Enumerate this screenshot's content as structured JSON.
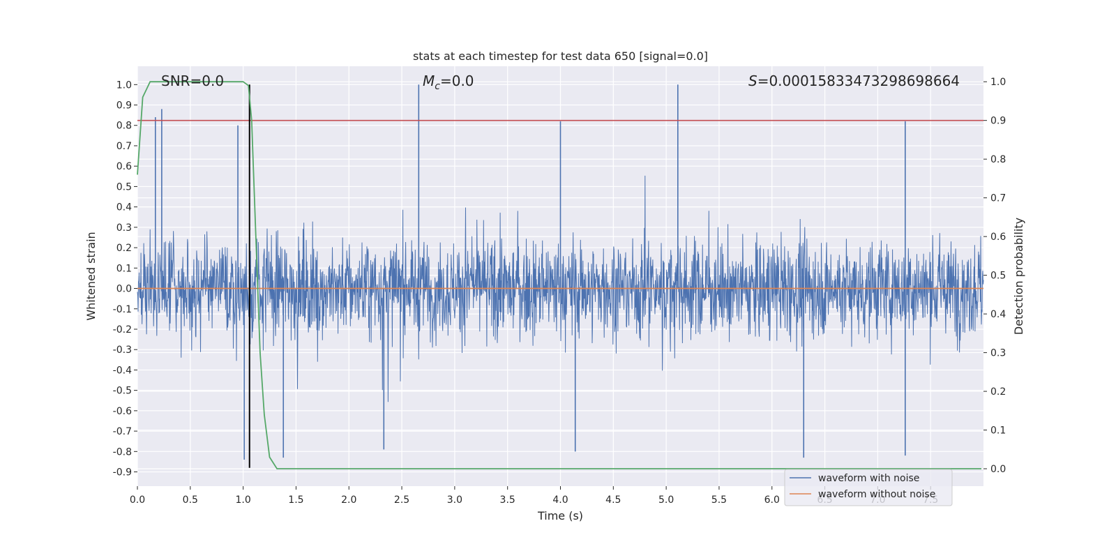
{
  "chart_data": {
    "type": "line",
    "title": "stats at each timestep for test data 650 [signal=0.0]",
    "xlabel": "Time (s)",
    "ylabel_left": "Whitened strain",
    "ylabel_right": "Detection probability",
    "xlim": [
      0.0,
      8.0
    ],
    "ylim_left": [
      -0.97,
      1.09
    ],
    "ylim_right": [
      -0.045,
      1.04
    ],
    "x_ticks": [
      "0.0",
      "0.5",
      "1.0",
      "1.5",
      "2.0",
      "2.5",
      "3.0",
      "3.5",
      "4.0",
      "4.5",
      "5.0",
      "5.5",
      "6.0",
      "6.5",
      "7.0",
      "7.5"
    ],
    "y_ticks_left": [
      "1.0",
      "0.9",
      "0.8",
      "0.7",
      "0.6",
      "0.5",
      "0.4",
      "0.3",
      "0.2",
      "0.1",
      "0.0",
      "-0.1",
      "-0.2",
      "-0.3",
      "-0.4",
      "-0.5",
      "-0.6",
      "-0.7",
      "-0.8",
      "-0.9"
    ],
    "y_ticks_right": [
      "1.0",
      "0.9",
      "0.8",
      "0.7",
      "0.6",
      "0.5",
      "0.4",
      "0.3",
      "0.2",
      "0.1",
      "0.0"
    ],
    "grid": true,
    "legend_position": "bottom-right",
    "annotations": {
      "snr": "SNR=0.0",
      "mc_symbol": "M",
      "mc_subscript": "c",
      "mc_value": "=0.0",
      "s_symbol": "S",
      "s_value": "=0.00015833473298698664"
    },
    "series": [
      {
        "name": "waveform with noise",
        "color": "#4c72b0",
        "axis": "left",
        "description_kind": "noisy strain",
        "noise_envelope": {
          "positive_peak": 1.0,
          "negative_peak": -0.88
        },
        "peaks": [
          {
            "x": 0.23,
            "y": 0.88
          },
          {
            "x": 0.17,
            "y": 0.84
          },
          {
            "x": 0.95,
            "y": 0.8
          },
          {
            "x": 2.66,
            "y": 1.0
          },
          {
            "x": 4.0,
            "y": 0.82
          },
          {
            "x": 5.11,
            "y": 1.0
          },
          {
            "x": 7.26,
            "y": 0.82
          },
          {
            "x": 2.33,
            "y": -0.79
          },
          {
            "x": 4.14,
            "y": -0.8
          },
          {
            "x": 6.3,
            "y": -0.83
          },
          {
            "x": 7.26,
            "y": -0.82
          },
          {
            "x": 1.38,
            "y": -0.83
          },
          {
            "x": 1.01,
            "y": -0.84
          }
        ]
      },
      {
        "name": "waveform without noise",
        "color": "#dd8452",
        "axis": "left",
        "x": [
          0.0,
          8.0
        ],
        "y": [
          0.0,
          0.0
        ]
      },
      {
        "name": "detection probability",
        "color": "#55a868",
        "axis": "right",
        "x": [
          0.0,
          0.05,
          0.12,
          0.2,
          0.6,
          1.0,
          1.05,
          1.08,
          1.12,
          1.16,
          1.2,
          1.25,
          1.32,
          1.4,
          2.0,
          7.98
        ],
        "y": [
          0.76,
          0.96,
          1.0,
          1.0,
          1.0,
          1.0,
          0.99,
          0.9,
          0.6,
          0.3,
          0.14,
          0.03,
          0.0,
          0.0,
          0.0,
          0.0
        ]
      }
    ],
    "reference_lines": [
      {
        "kind": "horizontal",
        "axis": "right",
        "y": 0.9,
        "color": "#c44e52"
      },
      {
        "kind": "vertical",
        "x": 1.06,
        "y_range_left": [
          -0.88,
          1.0
        ],
        "color": "#000000"
      }
    ]
  }
}
